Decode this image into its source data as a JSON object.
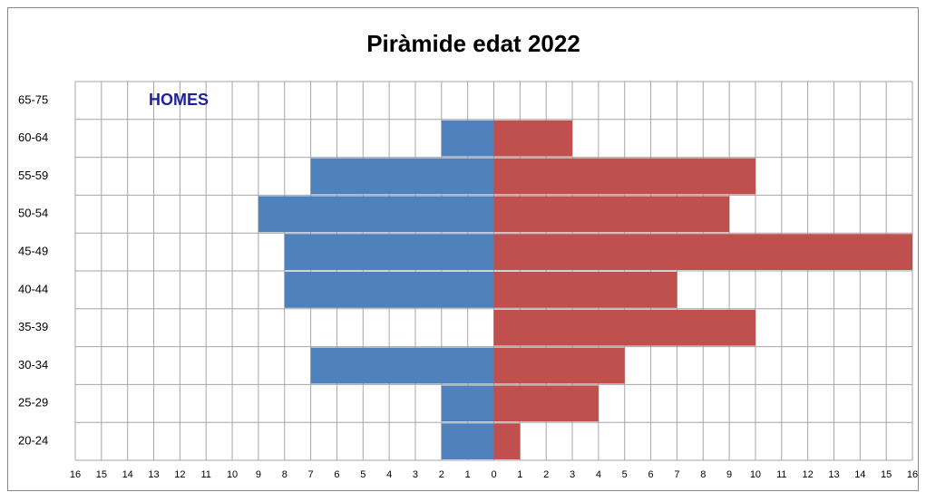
{
  "chart_data": {
    "type": "pyramid",
    "title": "Piràmide edat 2022",
    "categories": [
      "65-75",
      "60-64",
      "55-59",
      "50-54",
      "45-49",
      "40-44",
      "35-39",
      "30-34",
      "25-29",
      "20-24"
    ],
    "series": [
      {
        "name": "HOMES",
        "color": "#4f81bd",
        "values": [
          0,
          2,
          7,
          9,
          8,
          8,
          0,
          7,
          2,
          2
        ]
      },
      {
        "color": "#c0504d",
        "values": [
          0,
          3,
          10,
          9,
          16,
          7,
          10,
          5,
          4,
          1
        ]
      }
    ],
    "xlim": [
      -16,
      16
    ],
    "xticks": [
      {
        "value": -16,
        "label": "16"
      },
      {
        "value": -15,
        "label": "15"
      },
      {
        "value": -14,
        "label": "14"
      },
      {
        "value": -13,
        "label": "13"
      },
      {
        "value": -12,
        "label": "12"
      },
      {
        "value": -11,
        "label": "11"
      },
      {
        "value": -10,
        "label": "10"
      },
      {
        "value": -9,
        "label": "9"
      },
      {
        "value": -8,
        "label": "8"
      },
      {
        "value": -7,
        "label": "7"
      },
      {
        "value": -6,
        "label": "6"
      },
      {
        "value": -5,
        "label": "5"
      },
      {
        "value": -4,
        "label": "4"
      },
      {
        "value": -3,
        "label": "3"
      },
      {
        "value": -2,
        "label": "2"
      },
      {
        "value": -1,
        "label": "1"
      },
      0,
      1,
      2,
      3,
      4,
      5,
      6,
      7,
      8,
      9,
      10,
      11,
      12,
      13,
      14,
      15,
      16
    ],
    "grid": true
  }
}
